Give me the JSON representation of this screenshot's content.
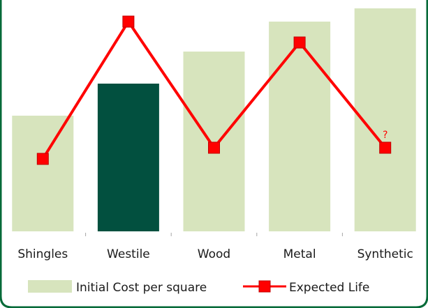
{
  "chart_data": {
    "type": "bar",
    "categories": [
      "Shingles",
      "Westile",
      "Wood",
      "Metal",
      "Synthetic"
    ],
    "series": [
      {
        "name": "Initial Cost per square",
        "type": "bar",
        "values": [
          166,
          212,
          258,
          301,
          320
        ],
        "color": "#d7e4bd",
        "highlight_index": 1,
        "highlight_color": "#02503f"
      },
      {
        "name": "Expected Life",
        "type": "line",
        "values": [
          104,
          301,
          120,
          271,
          120
        ],
        "color": "#ff0000",
        "marker": "square"
      }
    ],
    "ylim": [
      0,
      330
    ],
    "grid": false,
    "legend_position": "bottom",
    "annotations": [
      {
        "text": "?",
        "category": "Synthetic",
        "series": "Expected Life"
      }
    ],
    "frame_color": "#046a38"
  }
}
